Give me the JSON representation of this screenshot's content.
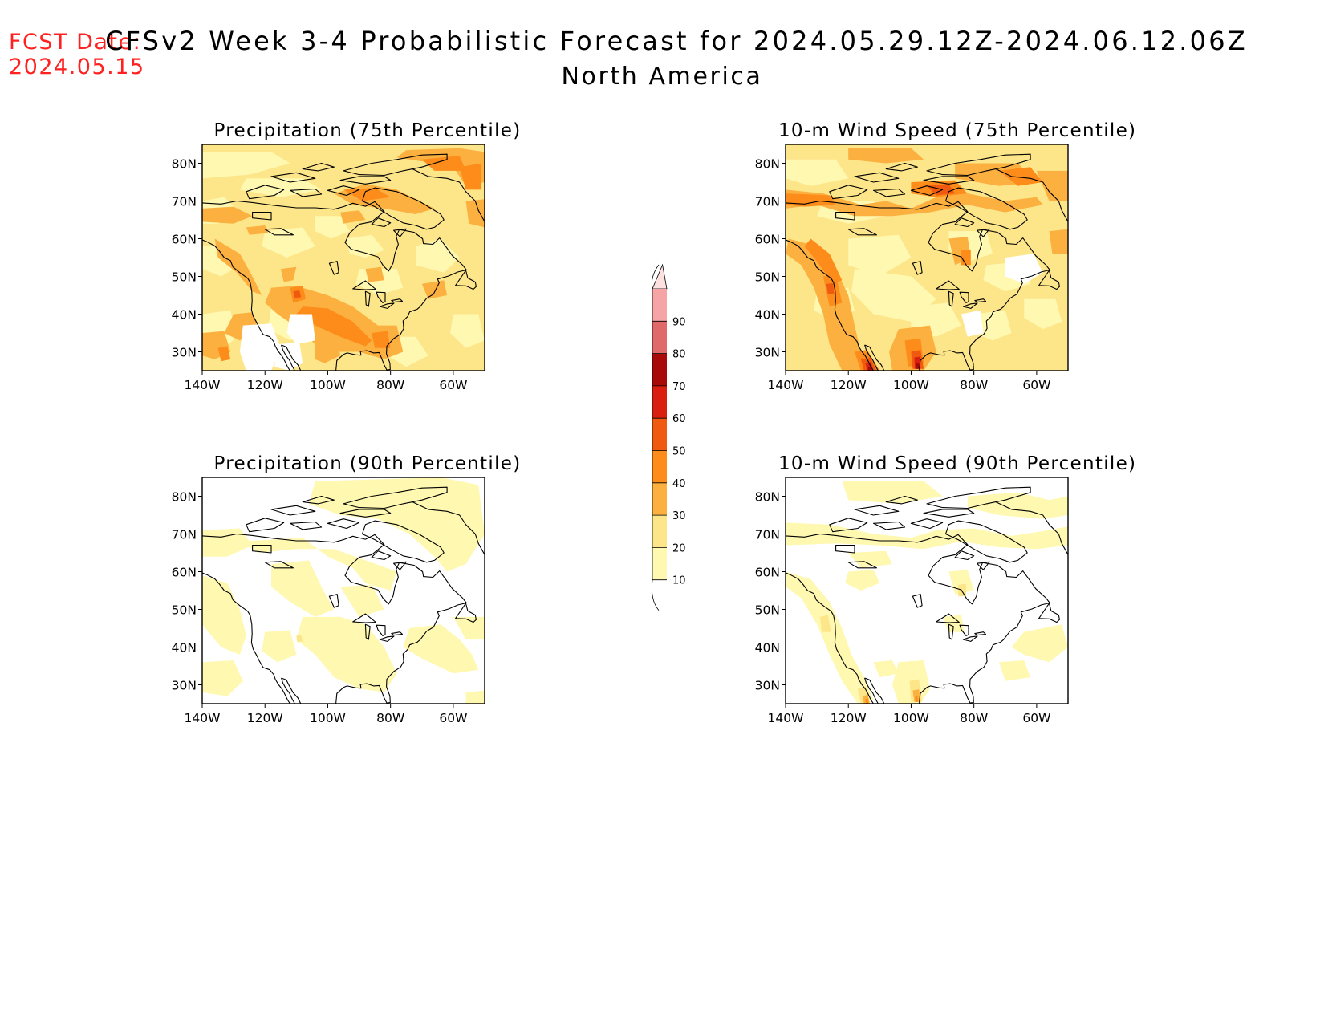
{
  "header": {
    "fcst_label": "FCST Date:",
    "fcst_date": "2024.05.15",
    "title": "CFSv2 Week 3-4 Probabilistic Forecast for 2024.05.29.12Z-2024.06.12.06Z",
    "region": "North America"
  },
  "colors": {
    "c10": "#fff8b0",
    "c20": "#fde68a",
    "c30": "#fbb040",
    "c40": "#fd8c1a",
    "c50": "#f05a10",
    "c60": "#d92010",
    "c70": "#a80a0a",
    "c80": "#e06a6a",
    "c90": "#f5a5a5",
    "c100": "#fde0e0",
    "land_outline": "#000000"
  },
  "colorbar": {
    "levels": [
      10,
      20,
      30,
      40,
      50,
      60,
      70,
      80,
      90
    ],
    "labels": [
      "10",
      "20",
      "30",
      "40",
      "50",
      "60",
      "70",
      "80",
      "90"
    ]
  },
  "axes": {
    "lon_labels": [
      "140W",
      "120W",
      "100W",
      "80W",
      "60W"
    ],
    "lat_labels": [
      "30N",
      "40N",
      "50N",
      "60N",
      "70N",
      "80N"
    ],
    "lon_range": [
      -140,
      -50
    ],
    "lat_range": [
      25,
      85
    ]
  },
  "panels": [
    {
      "title": "Precipitation (75th Percentile)",
      "variable": "precipitation",
      "percentile": 75,
      "dominant_category": 20
    },
    {
      "title": "10-m Wind Speed (75th Percentile)",
      "variable": "wind",
      "percentile": 75,
      "dominant_category": 20
    },
    {
      "title": "Precipitation (90th Percentile)",
      "variable": "precipitation",
      "percentile": 90,
      "dominant_category": 0
    },
    {
      "title": "10-m Wind Speed (90th Percentile)",
      "variable": "wind",
      "percentile": 90,
      "dominant_category": 0
    }
  ]
}
